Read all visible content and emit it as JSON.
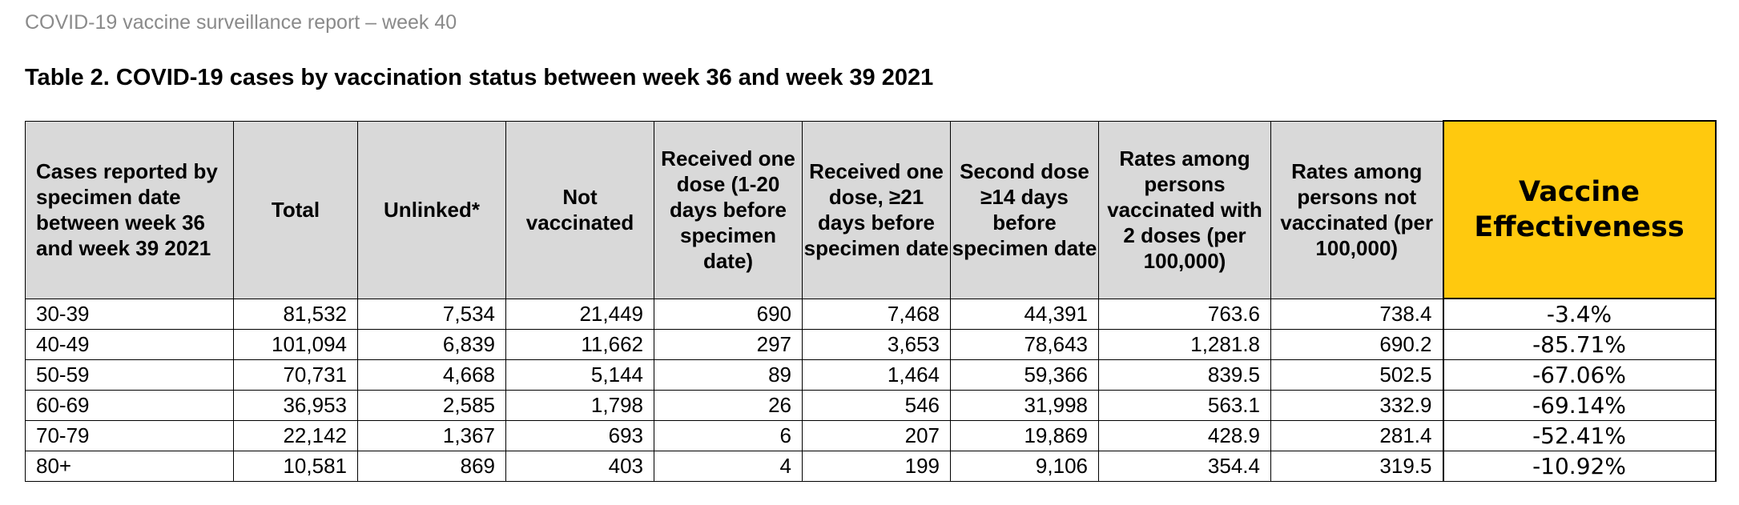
{
  "report_header": "COVID-19 vaccine surveillance report – week 40",
  "table_title": "Table 2. COVID-19 cases by vaccination status between week 36 and week 39 2021",
  "columns": [
    "Cases reported by specimen date between week 36 and week 39 2021",
    "Total",
    "Unlinked*",
    "Not vaccinated",
    "Received one dose (1-20 days before specimen date)",
    "Received one dose, ≥21 days before specimen date",
    "Second dose ≥14 days before specimen date",
    "Rates among persons vaccinated with 2 doses (per 100,000)",
    "Rates among persons not vaccinated (per 100,000)",
    "Vaccine Effectiveness"
  ],
  "rows": [
    [
      "30-39",
      "81,532",
      "7,534",
      "21,449",
      "690",
      "7,468",
      "44,391",
      "763.6",
      "738.4",
      "-3.4%"
    ],
    [
      "40-49",
      "101,094",
      "6,839",
      "11,662",
      "297",
      "3,653",
      "78,643",
      "1,281.8",
      "690.2",
      "-85.71%"
    ],
    [
      "50-59",
      "70,731",
      "4,668",
      "5,144",
      "89",
      "1,464",
      "59,366",
      "839.5",
      "502.5",
      "-67.06%"
    ],
    [
      "60-69",
      "36,953",
      "2,585",
      "1,798",
      "26",
      "546",
      "31,998",
      "563.1",
      "332.9",
      "-69.14%"
    ],
    [
      "70-79",
      "22,142",
      "1,367",
      "693",
      "6",
      "207",
      "19,869",
      "428.9",
      "281.4",
      "-52.41%"
    ],
    [
      "80+",
      "10,581",
      "869",
      "403",
      "4",
      "199",
      "9,106",
      "354.4",
      "319.5",
      "-10.92%"
    ]
  ],
  "colors": {
    "header_background": "#d9d9d9",
    "effectiveness_header_background": "#ffc90e",
    "report_header_text": "#8a8a8a"
  }
}
